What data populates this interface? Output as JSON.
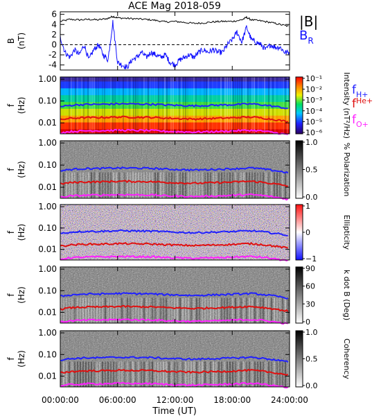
{
  "title": "ACE Mag 2018-059",
  "x_axis": {
    "label": "Time (UT)",
    "ticks": [
      "00:00:00",
      "06:00:00",
      "12:00:00",
      "18:00:00",
      "24:00:00"
    ],
    "range_hours": [
      0,
      24
    ]
  },
  "legend_top": {
    "b_total": "|B|",
    "b_r_main": "B",
    "b_r_sub": "R",
    "b_total_color": "#000000",
    "b_r_color": "#1010ff"
  },
  "legend_gyro": {
    "f_h_main": "f",
    "f_h_sub": "H+",
    "f_h_color": "#2020ff",
    "f_he_main": "f",
    "f_he_sub": "He+",
    "f_he_color": "#e01010",
    "f_o_main": "f",
    "f_o_sub": "O+",
    "f_o_color": "#ff20ff"
  },
  "freq_panel": {
    "ylabel_top": "f",
    "ylabel_bottom": "(Hz)",
    "ticks": [
      "1.00",
      "0.10",
      "0.01"
    ]
  },
  "panels": [
    {
      "id": "mag",
      "ylabel_top": "B",
      "ylabel_bottom": "(nT)",
      "yticks": [
        "6",
        "4",
        "2",
        "0",
        "-2",
        "-4"
      ]
    },
    {
      "id": "intensity",
      "colormap": "rainbow",
      "colorbar_label": "Intensity (nT²/Hz)",
      "colorbar_ticks": [
        "10⁻¹",
        "10⁻²",
        "10⁻³",
        "10⁻⁴",
        "10⁻⁵",
        "10⁻⁶"
      ]
    },
    {
      "id": "polarization",
      "colormap": "gray",
      "colorbar_label": "% Polarization",
      "colorbar_ticks": [
        "1.0",
        "0.5",
        "0.0"
      ]
    },
    {
      "id": "ellipticity",
      "colormap": "bwr",
      "colorbar_label": "Ellipticity",
      "colorbar_ticks": [
        "1",
        "0",
        "−1"
      ]
    },
    {
      "id": "kdotb",
      "colormap": "gray",
      "colorbar_label": "k dot B (Deg)",
      "colorbar_ticks": [
        "90",
        "60",
        "30",
        "0"
      ]
    },
    {
      "id": "coherency",
      "colormap": "gray",
      "colorbar_label": "Coherency",
      "colorbar_ticks": [
        "1.0",
        "0.5",
        "0.0"
      ]
    }
  ],
  "chart_data": {
    "type": "line",
    "title": "ACE Mag 2018-059",
    "xlabel": "Time (UT)",
    "x_unit": "hours",
    "series": [
      {
        "name": "|B|",
        "panel": "mag",
        "unit": "nT",
        "x": [
          0,
          1,
          2,
          3,
          4,
          5,
          5.5,
          6,
          7,
          8,
          9,
          10,
          11,
          12,
          13,
          14,
          15,
          16,
          17,
          18,
          19,
          19.5,
          20,
          21,
          22,
          23,
          24
        ],
        "y": [
          4.6,
          5.0,
          4.9,
          5.0,
          4.9,
          5.2,
          5.6,
          5.3,
          5.2,
          5.1,
          5.0,
          4.8,
          4.5,
          4.6,
          4.4,
          4.2,
          4.3,
          4.5,
          4.6,
          4.6,
          4.9,
          5.4,
          4.9,
          4.7,
          4.4,
          4.0,
          3.6
        ]
      },
      {
        "name": "B_R",
        "panel": "mag",
        "unit": "nT",
        "x": [
          0,
          0.5,
          1,
          1.5,
          2,
          2.5,
          3,
          3.5,
          4,
          4.5,
          5,
          5.5,
          6,
          6.5,
          7,
          7.5,
          8,
          8.5,
          9,
          9.5,
          10,
          10.5,
          11,
          11.5,
          12,
          12.5,
          13,
          13.5,
          14,
          14.5,
          15,
          15.5,
          16,
          16.5,
          17,
          17.5,
          18,
          18.5,
          19,
          19.5,
          20,
          20.5,
          21,
          21.5,
          22,
          22.5,
          23,
          23.5,
          24
        ],
        "y": [
          1.5,
          -1.5,
          -2.5,
          -1.0,
          -2.0,
          0.0,
          -3.0,
          -1.0,
          0.0,
          -2.0,
          -3.0,
          4.5,
          -3.5,
          -4.0,
          -4.5,
          -3.0,
          -2.5,
          -1.5,
          -2.5,
          -1.5,
          -2.0,
          -2.5,
          -2.0,
          -3.5,
          -4.0,
          -3.0,
          -2.5,
          -2.0,
          -2.5,
          -1.5,
          -1.0,
          -1.5,
          -1.0,
          -1.5,
          -1.5,
          0.0,
          1.0,
          2.5,
          0.5,
          3.5,
          1.0,
          0.5,
          0.0,
          -1.0,
          0.0,
          -0.5,
          -0.5,
          -1.5,
          -1.5
        ]
      },
      {
        "name": "f_H+",
        "panel": "frequency",
        "unit": "Hz",
        "x": [
          0,
          1,
          2,
          3,
          4,
          5,
          6,
          7,
          8,
          9,
          10,
          11,
          12,
          13,
          14,
          15,
          16,
          17,
          18,
          19,
          20,
          21,
          22,
          23,
          24
        ],
        "y": [
          0.055,
          0.063,
          0.068,
          0.07,
          0.07,
          0.072,
          0.074,
          0.074,
          0.073,
          0.072,
          0.07,
          0.066,
          0.064,
          0.062,
          0.06,
          0.062,
          0.064,
          0.066,
          0.068,
          0.071,
          0.074,
          0.068,
          0.06,
          0.052,
          0.044
        ]
      },
      {
        "name": "f_He+",
        "panel": "frequency",
        "unit": "Hz",
        "x": [
          0,
          1,
          2,
          3,
          4,
          5,
          6,
          7,
          8,
          9,
          10,
          11,
          12,
          13,
          14,
          15,
          16,
          17,
          18,
          19,
          20,
          21,
          22,
          23,
          24
        ],
        "y": [
          0.014,
          0.016,
          0.017,
          0.0175,
          0.0175,
          0.018,
          0.0185,
          0.0185,
          0.018,
          0.018,
          0.0175,
          0.0165,
          0.016,
          0.0155,
          0.015,
          0.0155,
          0.016,
          0.0165,
          0.017,
          0.018,
          0.0185,
          0.017,
          0.015,
          0.013,
          0.011
        ]
      },
      {
        "name": "f_O+",
        "panel": "frequency",
        "unit": "Hz",
        "x": [
          0,
          1,
          2,
          3,
          4,
          5,
          6,
          7,
          8,
          9,
          10,
          11,
          12,
          13,
          14,
          15,
          16,
          17,
          18,
          19,
          20,
          21,
          22,
          23,
          24
        ],
        "y": [
          0.0035,
          0.004,
          0.0042,
          0.0044,
          0.0044,
          0.0045,
          0.0046,
          0.0046,
          0.0045,
          0.0045,
          0.0044,
          0.0041,
          0.004,
          0.0039,
          0.0038,
          0.0039,
          0.004,
          0.0041,
          0.0043,
          0.0045,
          0.0046,
          0.0043,
          0.0038,
          0.0033,
          0.0028
        ]
      }
    ],
    "mag_ylim": [
      -5,
      6.5
    ],
    "freq_ylim_log10": [
      -2.5,
      0.1
    ],
    "grid": false,
    "legend_placement": "right"
  }
}
